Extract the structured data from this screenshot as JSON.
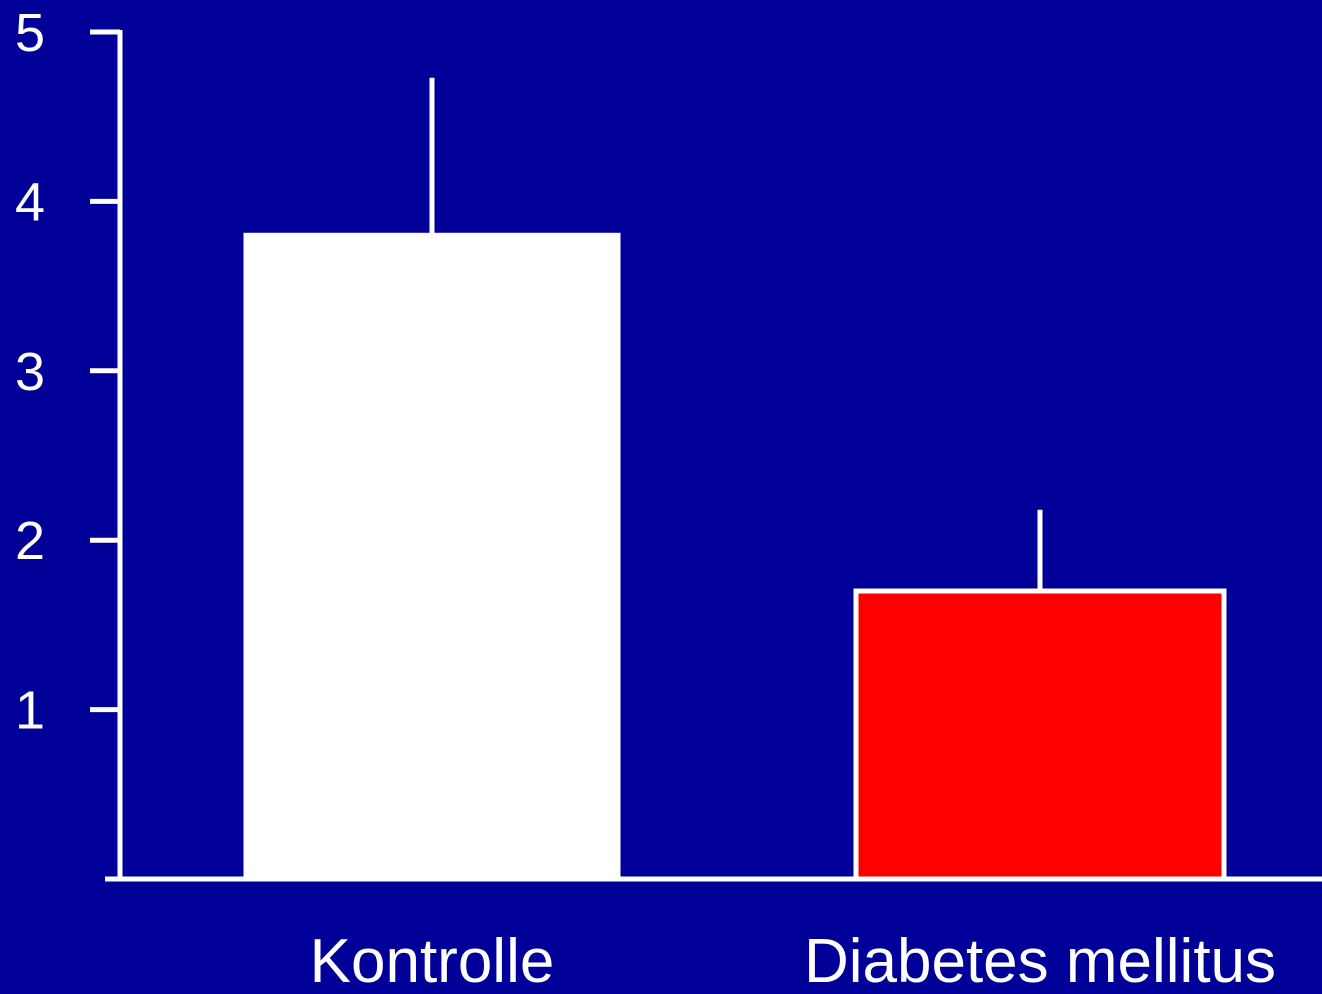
{
  "colors": {
    "background": "#000099",
    "axis": "#ffffff",
    "text": "#ffffff"
  },
  "chart_data": {
    "type": "bar",
    "title": "",
    "xlabel": "",
    "ylabel": "",
    "categories": [
      "Kontrolle",
      "Diabetes mellitus"
    ],
    "values": [
      3.8,
      1.7
    ],
    "error": [
      0.93,
      0.48
    ],
    "bar_colors": [
      "#ffffff",
      "#ff0000"
    ],
    "bar_outline": "#ffffff",
    "ylim": [
      0,
      5
    ],
    "yticks": [
      1,
      2,
      3,
      4,
      5
    ],
    "grid": false,
    "legend": "none"
  }
}
